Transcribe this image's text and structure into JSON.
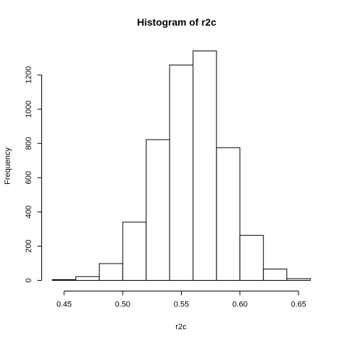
{
  "chart_data": {
    "type": "bar",
    "title": "Histogram of r2c",
    "xlabel": "r2c",
    "ylabel": "Frequency",
    "bins": [
      {
        "start": 0.44,
        "end": 0.46,
        "count": 4
      },
      {
        "start": 0.46,
        "end": 0.48,
        "count": 22
      },
      {
        "start": 0.48,
        "end": 0.5,
        "count": 98
      },
      {
        "start": 0.5,
        "end": 0.52,
        "count": 340
      },
      {
        "start": 0.52,
        "end": 0.54,
        "count": 822
      },
      {
        "start": 0.54,
        "end": 0.56,
        "count": 1258
      },
      {
        "start": 0.56,
        "end": 0.58,
        "count": 1340
      },
      {
        "start": 0.58,
        "end": 0.6,
        "count": 775
      },
      {
        "start": 0.6,
        "end": 0.62,
        "count": 263
      },
      {
        "start": 0.62,
        "end": 0.64,
        "count": 66
      },
      {
        "start": 0.64,
        "end": 0.66,
        "count": 10
      }
    ],
    "xlim": [
      0.44,
      0.66
    ],
    "ylim": [
      0,
      1340
    ],
    "x_ticks": [
      0.45,
      0.5,
      0.55,
      0.6,
      0.65
    ],
    "x_tick_labels": [
      "0.45",
      "0.50",
      "0.55",
      "0.60",
      "0.65"
    ],
    "y_ticks": [
      0,
      200,
      400,
      600,
      800,
      1000,
      1200
    ],
    "y_tick_labels": [
      "0",
      "200",
      "400",
      "600",
      "800",
      "1000",
      "1200"
    ],
    "grid": false,
    "bar_fill": "#ffffff",
    "bar_stroke": "#000000"
  }
}
